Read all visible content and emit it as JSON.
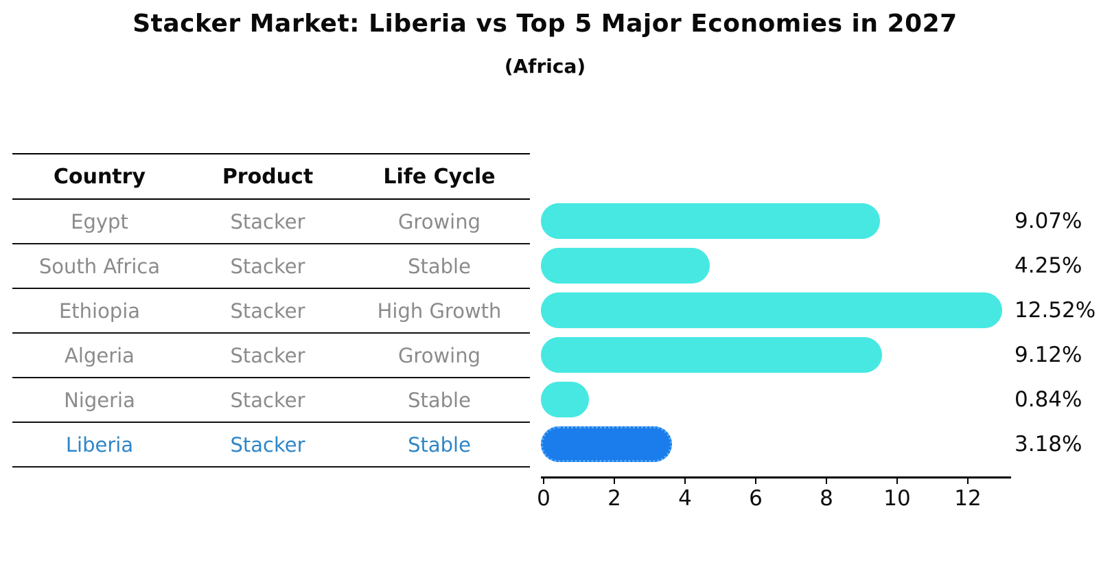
{
  "title": "Stacker Market: Liberia vs Top 5 Major Economies in 2027",
  "subtitle": "(Africa)",
  "table": {
    "headers": [
      "Country",
      "Product",
      "Life Cycle"
    ],
    "rows": [
      {
        "country": "Egypt",
        "product": "Stacker",
        "life_cycle": "Growing",
        "highlight": false
      },
      {
        "country": "South Africa",
        "product": "Stacker",
        "life_cycle": "Stable",
        "highlight": false
      },
      {
        "country": "Ethiopia",
        "product": "Stacker",
        "life_cycle": "High Growth",
        "highlight": false
      },
      {
        "country": "Algeria",
        "product": "Stacker",
        "life_cycle": "Growing",
        "highlight": false
      },
      {
        "country": "Nigeria",
        "product": "Stacker",
        "life_cycle": "Stable",
        "highlight": false
      },
      {
        "country": "Liberia",
        "product": "Stacker",
        "life_cycle": "Stable",
        "highlight": true
      }
    ]
  },
  "chart_data": {
    "type": "bar",
    "orientation": "horizontal",
    "title": "Stacker Market: Liberia vs Top 5 Major Economies in 2027",
    "subtitle": "(Africa)",
    "categories": [
      "Egypt",
      "South Africa",
      "Ethiopia",
      "Algeria",
      "Nigeria",
      "Liberia"
    ],
    "values": [
      9.07,
      4.25,
      12.52,
      9.12,
      0.84,
      3.18
    ],
    "value_labels": [
      "9.07%",
      "4.25%",
      "12.52%",
      "9.12%",
      "0.84%",
      "3.18%"
    ],
    "xticks": [
      0,
      2,
      4,
      6,
      8,
      10,
      12
    ],
    "xlim": [
      0,
      13.3
    ],
    "xlabel": "",
    "ylabel": "",
    "grid": false,
    "legend": "none",
    "bar_color": "#47e8e2",
    "highlight_index": 5,
    "highlight_color": "#1b7cec",
    "highlight_edge_color": "#55aaf5",
    "highlight_edge_style": "dotted",
    "highlight_text_color": "#2e86c8",
    "text_color": "#0d0d0d",
    "muted_text_color": "#8b8b8b"
  }
}
